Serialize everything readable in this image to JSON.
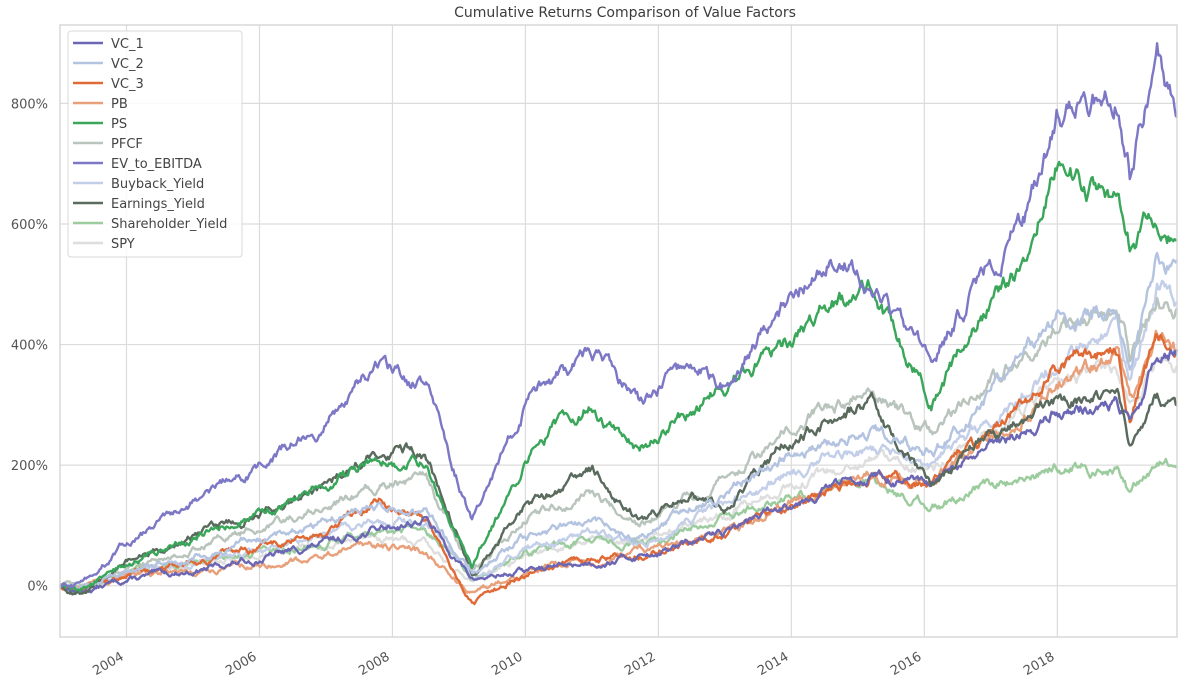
{
  "chart_data": {
    "type": "line",
    "title": "Cumulative Returns Comparison of Value Factors",
    "xlabel": "",
    "ylabel": "",
    "xlim": [
      2003.0,
      2019.8
    ],
    "ylim": [
      -85,
      930
    ],
    "x_ticks": [
      2004,
      2006,
      2008,
      2010,
      2012,
      2014,
      2016,
      2018
    ],
    "x_tick_labels": [
      "2004",
      "2006",
      "2008",
      "2010",
      "2012",
      "2014",
      "2016",
      "2018"
    ],
    "y_ticks": [
      0,
      200,
      400,
      600,
      800
    ],
    "y_tick_labels": [
      "0%",
      "200%",
      "400%",
      "600%",
      "800%"
    ],
    "grid": true,
    "legend_position": "top-left",
    "series": [
      {
        "name": "VC_1",
        "color": "#6b67b5",
        "x": [
          2003.0,
          2003.3,
          2004.0,
          2005.0,
          2006.0,
          2007.0,
          2007.8,
          2008.5,
          2009.2,
          2010.0,
          2011.0,
          2011.7,
          2012.5,
          2013.0,
          2014.0,
          2014.6,
          2015.2,
          2016.1,
          2016.8,
          2017.5,
          2018.0,
          2018.9,
          2019.1,
          2019.5,
          2019.8
        ],
        "values": [
          0,
          -10,
          10,
          25,
          45,
          70,
          95,
          110,
          10,
          25,
          40,
          50,
          70,
          90,
          140,
          165,
          185,
          160,
          215,
          250,
          290,
          300,
          260,
          380,
          395
        ]
      },
      {
        "name": "VC_2",
        "color": "#b3c3e0",
        "x": [
          2003.0,
          2003.3,
          2004.0,
          2005.0,
          2006.0,
          2007.0,
          2007.8,
          2008.5,
          2009.2,
          2010.0,
          2011.0,
          2011.7,
          2012.5,
          2013.0,
          2014.0,
          2014.6,
          2015.2,
          2016.1,
          2016.8,
          2017.5,
          2018.0,
          2018.9,
          2019.1,
          2019.5,
          2019.8
        ],
        "values": [
          0,
          -5,
          25,
          50,
          75,
          110,
          130,
          125,
          20,
          80,
          110,
          80,
          130,
          150,
          220,
          240,
          260,
          220,
          300,
          380,
          440,
          460,
          360,
          560,
          530
        ]
      },
      {
        "name": "VC_3",
        "color": "#e06a35",
        "x": [
          2003.0,
          2003.3,
          2004.0,
          2005.0,
          2006.0,
          2007.0,
          2007.8,
          2008.5,
          2009.2,
          2010.0,
          2011.0,
          2011.7,
          2012.5,
          2013.0,
          2014.0,
          2014.6,
          2015.2,
          2016.1,
          2016.8,
          2017.5,
          2018.0,
          2018.9,
          2019.1,
          2019.5,
          2019.8
        ],
        "values": [
          0,
          -5,
          20,
          40,
          60,
          90,
          140,
          115,
          -30,
          20,
          45,
          50,
          70,
          90,
          140,
          160,
          185,
          170,
          230,
          300,
          360,
          400,
          280,
          410,
          390
        ]
      },
      {
        "name": "PB",
        "color": "#e8a07a",
        "x": [
          2003.0,
          2003.3,
          2004.0,
          2005.0,
          2006.0,
          2007.0,
          2007.8,
          2008.5,
          2009.2,
          2010.0,
          2011.0,
          2011.7,
          2012.5,
          2013.0,
          2014.0,
          2014.6,
          2015.2,
          2016.1,
          2016.8,
          2017.5,
          2018.0,
          2018.9,
          2019.1,
          2019.5,
          2019.8
        ],
        "values": [
          0,
          -5,
          15,
          25,
          35,
          50,
          70,
          55,
          -15,
          25,
          45,
          55,
          75,
          95,
          140,
          165,
          185,
          170,
          230,
          290,
          340,
          380,
          300,
          400,
          380
        ]
      },
      {
        "name": "PS",
        "color": "#3aa65a",
        "x": [
          2003.0,
          2003.3,
          2004.0,
          2005.0,
          2006.0,
          2007.0,
          2007.8,
          2008.5,
          2009.2,
          2010.0,
          2010.5,
          2011.0,
          2011.7,
          2012.5,
          2013.0,
          2014.0,
          2014.6,
          2015.2,
          2016.1,
          2016.8,
          2017.5,
          2018.0,
          2018.9,
          2019.1,
          2019.5,
          2019.8
        ],
        "values": [
          0,
          -5,
          35,
          80,
          120,
          170,
          215,
          200,
          40,
          200,
          270,
          300,
          220,
          290,
          330,
          410,
          470,
          490,
          310,
          440,
          530,
          700,
          620,
          560,
          620,
          560
        ]
      },
      {
        "name": "PFCF",
        "color": "#b8c4bc",
        "x": [
          2003.0,
          2003.3,
          2004.0,
          2005.0,
          2006.0,
          2007.0,
          2007.8,
          2008.5,
          2009.2,
          2010.0,
          2011.0,
          2011.7,
          2012.5,
          2013.0,
          2014.0,
          2014.6,
          2015.2,
          2016.1,
          2016.8,
          2017.5,
          2018.0,
          2018.9,
          2019.1,
          2019.5,
          2019.8
        ],
        "values": [
          0,
          -5,
          30,
          60,
          95,
          130,
          165,
          175,
          30,
          110,
          150,
          100,
          150,
          180,
          260,
          300,
          320,
          250,
          330,
          380,
          420,
          480,
          380,
          480,
          460
        ]
      },
      {
        "name": "EV_to_EBITDA",
        "color": "#7d78c6",
        "x": [
          2003.0,
          2003.3,
          2004.0,
          2005.0,
          2006.0,
          2007.0,
          2007.8,
          2008.5,
          2009.2,
          2010.0,
          2010.5,
          2011.0,
          2011.7,
          2012.5,
          2013.0,
          2014.0,
          2014.6,
          2015.2,
          2016.1,
          2016.8,
          2017.5,
          2018.0,
          2018.9,
          2019.1,
          2019.5,
          2019.8
        ],
        "values": [
          0,
          0,
          70,
          140,
          200,
          270,
          365,
          330,
          110,
          300,
          350,
          390,
          300,
          370,
          330,
          480,
          560,
          500,
          370,
          500,
          610,
          790,
          820,
          690,
          880,
          760
        ]
      },
      {
        "name": "Buyback_Yield",
        "color": "#c3cfe8",
        "x": [
          2003.0,
          2003.3,
          2004.0,
          2005.0,
          2006.0,
          2007.0,
          2007.8,
          2008.5,
          2009.2,
          2010.0,
          2011.0,
          2011.7,
          2012.5,
          2013.0,
          2014.0,
          2014.6,
          2015.2,
          2016.1,
          2016.8,
          2017.5,
          2018.0,
          2018.9,
          2019.1,
          2019.5,
          2019.8
        ],
        "values": [
          0,
          -5,
          20,
          40,
          60,
          90,
          110,
          110,
          10,
          60,
          90,
          70,
          110,
          130,
          190,
          210,
          230,
          200,
          260,
          320,
          380,
          420,
          330,
          500,
          470
        ]
      },
      {
        "name": "Earnings_Yield",
        "color": "#5a6b5e",
        "x": [
          2003.0,
          2003.3,
          2004.0,
          2005.0,
          2006.0,
          2007.0,
          2007.8,
          2008.5,
          2009.2,
          2010.0,
          2010.5,
          2011.0,
          2011.7,
          2012.5,
          2013.0,
          2014.0,
          2014.6,
          2015.2,
          2016.1,
          2016.8,
          2017.5,
          2018.0,
          2018.9,
          2019.1,
          2019.5,
          2019.8
        ],
        "values": [
          0,
          -15,
          40,
          80,
          120,
          170,
          230,
          220,
          20,
          140,
          160,
          190,
          110,
          150,
          130,
          250,
          280,
          300,
          160,
          230,
          270,
          300,
          330,
          230,
          310,
          280
        ]
      },
      {
        "name": "Shareholder_Yield",
        "color": "#9ccc9e",
        "x": [
          2003.0,
          2003.3,
          2004.0,
          2005.0,
          2006.0,
          2007.0,
          2007.8,
          2008.5,
          2009.2,
          2010.0,
          2011.0,
          2011.7,
          2012.5,
          2013.0,
          2014.0,
          2014.6,
          2015.2,
          2016.1,
          2016.8,
          2017.5,
          2018.0,
          2018.9,
          2019.1,
          2019.5,
          2019.8
        ],
        "values": [
          0,
          -5,
          20,
          40,
          55,
          75,
          95,
          90,
          10,
          55,
          80,
          70,
          95,
          110,
          150,
          160,
          170,
          130,
          160,
          180,
          200,
          190,
          150,
          210,
          195
        ]
      },
      {
        "name": "SPY",
        "color": "#dedede",
        "x": [
          2003.0,
          2003.3,
          2004.0,
          2005.0,
          2006.0,
          2007.0,
          2007.8,
          2008.5,
          2009.2,
          2010.0,
          2011.0,
          2011.7,
          2012.5,
          2013.0,
          2014.0,
          2014.6,
          2015.2,
          2016.1,
          2016.8,
          2017.5,
          2018.0,
          2018.9,
          2019.1,
          2019.5,
          2019.8
        ],
        "values": [
          0,
          -5,
          20,
          35,
          50,
          70,
          80,
          70,
          0,
          55,
          80,
          70,
          100,
          120,
          170,
          190,
          210,
          190,
          240,
          290,
          330,
          360,
          300,
          380,
          370
        ]
      }
    ]
  }
}
